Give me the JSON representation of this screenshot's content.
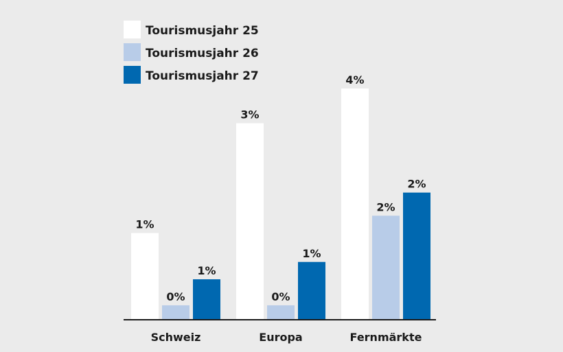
{
  "chart_data": {
    "type": "bar",
    "title": "",
    "xlabel": "",
    "ylabel": "",
    "ylim": [
      0,
      4
    ],
    "grid": false,
    "legend_position": "top-left",
    "categories": [
      "Schweiz",
      "Europa",
      "Fernmärkte"
    ],
    "series": [
      {
        "name": "Tourismusjahr 25",
        "color": "#ffffff",
        "values": [
          1.5,
          3.4,
          4.0
        ],
        "labels": [
          "1%",
          "3%",
          "4%"
        ]
      },
      {
        "name": "Tourismusjahr 26",
        "color": "#b8cce8",
        "values": [
          0.25,
          0.25,
          1.8
        ],
        "labels": [
          "0%",
          "0%",
          "2%"
        ]
      },
      {
        "name": "Tourismusjahr 27",
        "color": "#0068b0",
        "values": [
          0.7,
          1.0,
          2.2
        ],
        "labels": [
          "1%",
          "1%",
          "2%"
        ]
      }
    ]
  }
}
